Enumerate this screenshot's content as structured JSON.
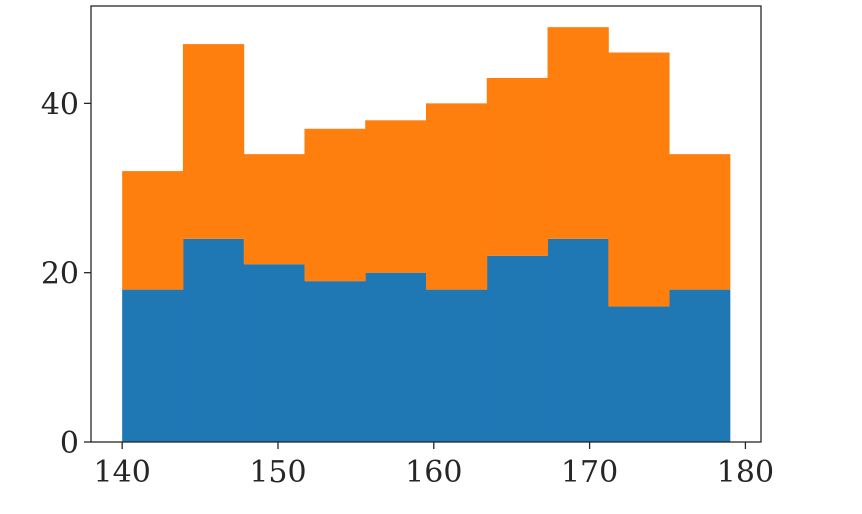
{
  "chart_data": {
    "type": "bar",
    "stacked": true,
    "histogram": true,
    "bin_edges": [
      140.0,
      143.9,
      147.8,
      151.7,
      155.6,
      159.5,
      163.4,
      167.3,
      171.2,
      175.1,
      179.0
    ],
    "series": [
      {
        "values": [
          18,
          24,
          21,
          19,
          20,
          18,
          22,
          24,
          16,
          18
        ],
        "color": "#1f77b4"
      },
      {
        "values": [
          14,
          23,
          13,
          18,
          18,
          22,
          21,
          25,
          30,
          16
        ],
        "color": "#ff7f0e"
      }
    ],
    "xlim": [
      138.0,
      181.0
    ],
    "ylim": [
      0,
      51.5
    ],
    "xticks": [
      140,
      150,
      160,
      170,
      180
    ],
    "yticks": [
      0,
      20,
      40
    ],
    "title": "",
    "xlabel": "",
    "ylabel": "",
    "grid": false,
    "legend": "none"
  }
}
